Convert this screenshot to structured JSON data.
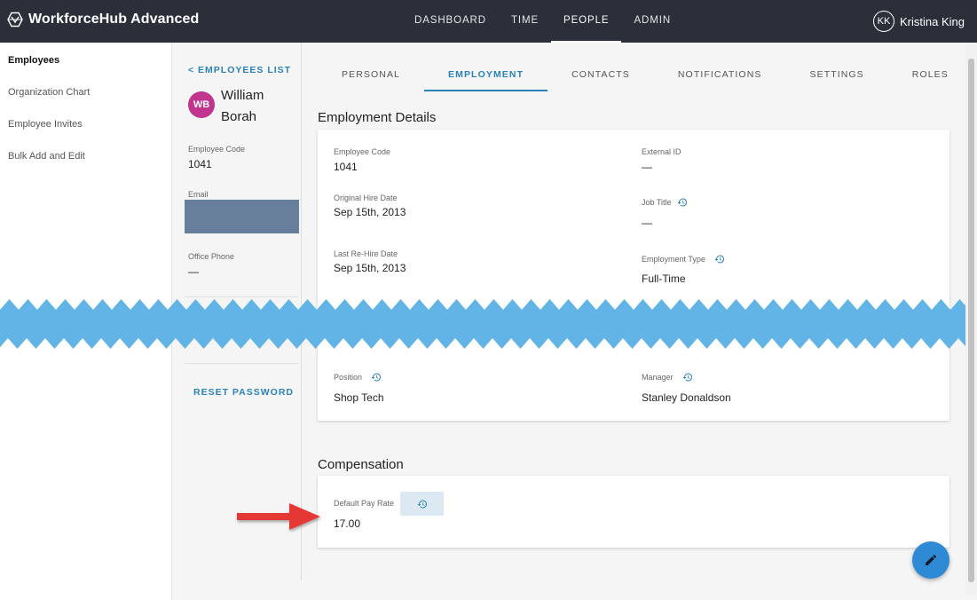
{
  "header": {
    "brand": "WorkforceHub Advanced",
    "nav": [
      {
        "label": "DASHBOARD",
        "active": false
      },
      {
        "label": "TIME",
        "active": false
      },
      {
        "label": "PEOPLE",
        "active": true
      },
      {
        "label": "ADMIN",
        "active": false
      }
    ],
    "user_initials": "KK",
    "user_name": "Kristina King"
  },
  "sidebar": {
    "items": [
      {
        "label": "Employees",
        "active": true
      },
      {
        "label": "Organization Chart",
        "active": false
      },
      {
        "label": "Employee Invites",
        "active": false
      },
      {
        "label": "Bulk Add and Edit",
        "active": false
      }
    ]
  },
  "profile": {
    "back_link": "< EMPLOYEES LIST",
    "initials": "WB",
    "name": "William Borah",
    "employee_code_label": "Employee Code",
    "employee_code": "1041",
    "email_label": "Email",
    "office_phone_label": "Office Phone",
    "office_phone": "—",
    "reset_password": "RESET PASSWORD"
  },
  "tabs": [
    {
      "label": "PERSONAL",
      "active": false
    },
    {
      "label": "EMPLOYMENT",
      "active": true
    },
    {
      "label": "CONTACTS",
      "active": false
    },
    {
      "label": "NOTIFICATIONS",
      "active": false
    },
    {
      "label": "SETTINGS",
      "active": false
    },
    {
      "label": "ROLES",
      "active": false
    }
  ],
  "employment": {
    "title": "Employment Details",
    "employee_code_label": "Employee Code",
    "employee_code": "1041",
    "external_id_label": "External ID",
    "external_id": "—",
    "original_hire_label": "Original Hire Date",
    "original_hire": "Sep 15th, 2013",
    "job_title_label": "Job Title",
    "job_title": "—",
    "rehire_label": "Last Re-Hire Date",
    "rehire": "Sep 15th, 2013",
    "employment_type_label": "Employment Type",
    "employment_type": "Full-Time",
    "position_label": "Position",
    "position": "Shop Tech",
    "manager_label": "Manager",
    "manager": "Stanley Donaldson"
  },
  "compensation": {
    "title": "Compensation",
    "pay_rate_label": "Default Pay Rate",
    "pay_rate": "17.00"
  },
  "colors": {
    "accent": "#2a82b8",
    "header_bg": "#2b2f3a",
    "avatar": "#c2358f",
    "break_band": "#62b4e6",
    "arrow": "#e53935",
    "fab": "#2f8ad6"
  }
}
